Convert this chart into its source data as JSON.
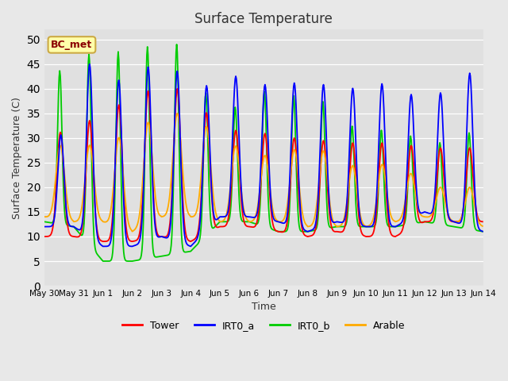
{
  "title": "Surface Temperature",
  "xlabel": "Time",
  "ylabel": "Surface Temperature (C)",
  "ylim": [
    0,
    52
  ],
  "yticks": [
    0,
    5,
    10,
    15,
    20,
    25,
    30,
    35,
    40,
    45,
    50
  ],
  "fig_bg_color": "#e8e8e8",
  "plot_bg_color": "#e0e0e0",
  "series_colors": {
    "Tower": "#ff0000",
    "IRT0_a": "#0000ff",
    "IRT0_b": "#00cc00",
    "Arable": "#ffaa00"
  },
  "legend_label": "BC_met",
  "legend_label_color": "#8b0000",
  "legend_label_bg": "#ffffaa",
  "xtick_labels": [
    "May 30",
    "May 31",
    "Jun 1",
    "Jun 2",
    "Jun 3",
    "Jun 4",
    "Jun 5",
    "Jun 6",
    "Jun 7",
    "Jun 8",
    "Jun 9",
    "Jun 10",
    "Jun 11",
    "Jun 12",
    "Jun 13",
    "Jun 14"
  ],
  "n_days": 15,
  "samples_per_day": 48
}
